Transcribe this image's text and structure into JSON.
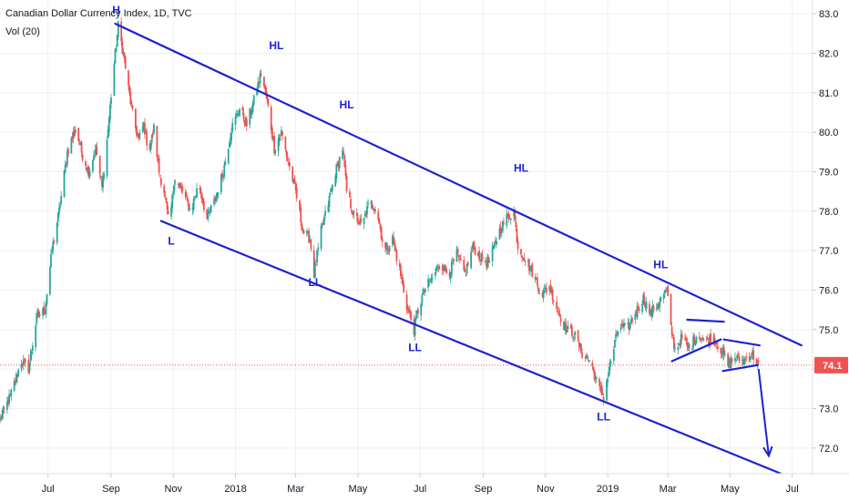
{
  "header": {
    "title": "Canadian Dollar Currency Index, 1D, TVC",
    "volume": "Vol (20)"
  },
  "chart_data": {
    "type": "candlestick",
    "symbol": "Canadian Dollar Currency Index",
    "interval": "1D",
    "source": "TVC",
    "y_ticks": [
      "83.0",
      "82.0",
      "81.0",
      "80.0",
      "79.0",
      "78.0",
      "77.0",
      "76.0",
      "75.0",
      "74.0",
      "73.0",
      "72.0"
    ],
    "ylim": [
      71.35,
      83.35
    ],
    "x_tick_labels": [
      "Jul",
      "Sep",
      "Nov",
      "2018",
      "Mar",
      "May",
      "Jul",
      "Sep",
      "Nov",
      "2019",
      "Mar",
      "May",
      "Jul"
    ],
    "x_tick_dates": [
      "2017-07-01",
      "2017-09-01",
      "2017-11-01",
      "2018-01-01",
      "2018-03-01",
      "2018-05-01",
      "2018-07-01",
      "2018-09-01",
      "2018-11-01",
      "2019-01-01",
      "2019-03-01",
      "2019-05-01",
      "2019-07-01"
    ],
    "current_price_label": "74.1",
    "current_price": 74.1,
    "price_path": [
      [
        "2017-05-15",
        72.7
      ],
      [
        "2017-05-25",
        73.3
      ],
      [
        "2017-06-05",
        74.2
      ],
      [
        "2017-06-12",
        74.0
      ],
      [
        "2017-06-20",
        75.3
      ],
      [
        "2017-06-28",
        75.5
      ],
      [
        "2017-07-05",
        77.0
      ],
      [
        "2017-07-12",
        78.0
      ],
      [
        "2017-07-20",
        79.5
      ],
      [
        "2017-07-28",
        80.1
      ],
      [
        "2017-08-03",
        79.5
      ],
      [
        "2017-08-10",
        79.0
      ],
      [
        "2017-08-17",
        79.6
      ],
      [
        "2017-08-23",
        78.6
      ],
      [
        "2017-08-28",
        79.8
      ],
      [
        "2017-09-03",
        81.5
      ],
      [
        "2017-09-08",
        82.7
      ],
      [
        "2017-09-13",
        82.0
      ],
      [
        "2017-09-18",
        81.1
      ],
      [
        "2017-09-23",
        80.3
      ],
      [
        "2017-09-28",
        79.8
      ],
      [
        "2017-10-03",
        80.2
      ],
      [
        "2017-10-08",
        79.5
      ],
      [
        "2017-10-13",
        80.1
      ],
      [
        "2017-10-18",
        79.0
      ],
      [
        "2017-10-23",
        78.5
      ],
      [
        "2017-10-28",
        77.6
      ],
      [
        "2017-11-02",
        78.8
      ],
      [
        "2017-11-10",
        78.5
      ],
      [
        "2017-11-18",
        78.0
      ],
      [
        "2017-11-26",
        78.7
      ],
      [
        "2017-12-04",
        77.8
      ],
      [
        "2017-12-12",
        78.3
      ],
      [
        "2017-12-20",
        79.0
      ],
      [
        "2017-12-28",
        80.1
      ],
      [
        "2018-01-05",
        80.6
      ],
      [
        "2018-01-12",
        80.2
      ],
      [
        "2018-01-19",
        80.8
      ],
      [
        "2018-01-26",
        81.5
      ],
      [
        "2018-02-01",
        80.8
      ],
      [
        "2018-02-08",
        79.6
      ],
      [
        "2018-02-15",
        80.0
      ],
      [
        "2018-02-22",
        79.2
      ],
      [
        "2018-03-01",
        78.5
      ],
      [
        "2018-03-08",
        77.5
      ],
      [
        "2018-03-15",
        77.3
      ],
      [
        "2018-03-19",
        76.4
      ],
      [
        "2018-03-26",
        77.5
      ],
      [
        "2018-04-02",
        78.2
      ],
      [
        "2018-04-09",
        79.0
      ],
      [
        "2018-04-16",
        79.6
      ],
      [
        "2018-04-20",
        78.5
      ],
      [
        "2018-04-27",
        77.9
      ],
      [
        "2018-05-05",
        77.6
      ],
      [
        "2018-05-12",
        78.2
      ],
      [
        "2018-05-19",
        78.1
      ],
      [
        "2018-05-27",
        77.0
      ],
      [
        "2018-06-04",
        77.3
      ],
      [
        "2018-06-11",
        76.5
      ],
      [
        "2018-06-18",
        75.6
      ],
      [
        "2018-06-25",
        75.0
      ],
      [
        "2018-06-28",
        75.4
      ],
      [
        "2018-07-05",
        76.0
      ],
      [
        "2018-07-13",
        76.3
      ],
      [
        "2018-07-21",
        76.7
      ],
      [
        "2018-07-29",
        76.4
      ],
      [
        "2018-08-06",
        76.9
      ],
      [
        "2018-08-14",
        76.4
      ],
      [
        "2018-08-22",
        77.1
      ],
      [
        "2018-08-30",
        76.8
      ],
      [
        "2018-09-07",
        76.7
      ],
      [
        "2018-09-15",
        77.4
      ],
      [
        "2018-09-23",
        77.8
      ],
      [
        "2018-10-01",
        78.0
      ],
      [
        "2018-10-05",
        77.1
      ],
      [
        "2018-10-12",
        76.8
      ],
      [
        "2018-10-20",
        76.4
      ],
      [
        "2018-10-28",
        75.9
      ],
      [
        "2018-11-05",
        76.1
      ],
      [
        "2018-11-13",
        75.5
      ],
      [
        "2018-11-21",
        75.0
      ],
      [
        "2018-11-29",
        74.9
      ],
      [
        "2018-12-07",
        74.4
      ],
      [
        "2018-12-15",
        74.2
      ],
      [
        "2018-12-22",
        73.6
      ],
      [
        "2018-12-28",
        73.3
      ],
      [
        "2019-01-04",
        74.2
      ],
      [
        "2019-01-12",
        75.1
      ],
      [
        "2019-01-20",
        75.0
      ],
      [
        "2019-01-28",
        75.4
      ],
      [
        "2019-02-05",
        75.8
      ],
      [
        "2019-02-12",
        75.4
      ],
      [
        "2019-02-20",
        75.7
      ],
      [
        "2019-02-28",
        76.0
      ],
      [
        "2019-03-03",
        75.2
      ],
      [
        "2019-03-08",
        74.5
      ],
      [
        "2019-03-15",
        74.8
      ],
      [
        "2019-03-22",
        74.5
      ],
      [
        "2019-03-30",
        74.9
      ],
      [
        "2019-04-07",
        74.7
      ],
      [
        "2019-04-15",
        74.8
      ],
      [
        "2019-04-22",
        74.5
      ],
      [
        "2019-04-29",
        74.1
      ],
      [
        "2019-05-06",
        74.3
      ],
      [
        "2019-05-14",
        74.2
      ],
      [
        "2019-05-22",
        74.4
      ],
      [
        "2019-05-29",
        74.1
      ]
    ],
    "trendlines": [
      {
        "name": "channel-upper",
        "from": [
          "2017-09-05",
          82.75
        ],
        "to": [
          "2019-07-10",
          74.6
        ]
      },
      {
        "name": "channel-lower",
        "from": [
          "2017-10-20",
          77.75
        ],
        "to": [
          "2019-06-20",
          71.35
        ]
      },
      {
        "name": "pennant-upper-1",
        "from": [
          "2019-03-20",
          75.25
        ],
        "to": [
          "2019-04-25",
          75.2
        ]
      },
      {
        "name": "pennant-lower-1",
        "from": [
          "2019-03-05",
          74.2
        ],
        "to": [
          "2019-04-22",
          74.75
        ]
      },
      {
        "name": "pennant-upper-2",
        "from": [
          "2019-04-25",
          74.75
        ],
        "to": [
          "2019-05-30",
          74.6
        ]
      },
      {
        "name": "pennant-lower-2",
        "from": [
          "2019-04-24",
          73.95
        ],
        "to": [
          "2019-05-28",
          74.1
        ]
      }
    ],
    "projection_arrow": {
      "from": [
        "2019-05-29",
        74.0
      ],
      "to": [
        "2019-06-08",
        71.8
      ]
    },
    "annotations": [
      {
        "text": "H",
        "date": "2017-09-06",
        "value": 83.0
      },
      {
        "text": "HL",
        "date": "2018-02-10",
        "value": 82.1
      },
      {
        "text": "HL",
        "date": "2018-04-20",
        "value": 80.6
      },
      {
        "text": "HL",
        "date": "2018-10-08",
        "value": 79.0
      },
      {
        "text": "HL",
        "date": "2019-02-22",
        "value": 76.55
      },
      {
        "text": "L",
        "date": "2017-10-30",
        "value": 77.15
      },
      {
        "text": "LL",
        "date": "2018-03-20",
        "value": 76.1
      },
      {
        "text": "LL",
        "date": "2018-06-26",
        "value": 74.45
      },
      {
        "text": "LL",
        "date": "2018-12-28",
        "value": 72.7
      }
    ]
  },
  "colors": {
    "up": "#26a69a",
    "down": "#ef5350",
    "drawing": "#1e22d0",
    "grid": "#eef0f3",
    "axis_text": "#131722",
    "price_badge": "#ef5350"
  }
}
